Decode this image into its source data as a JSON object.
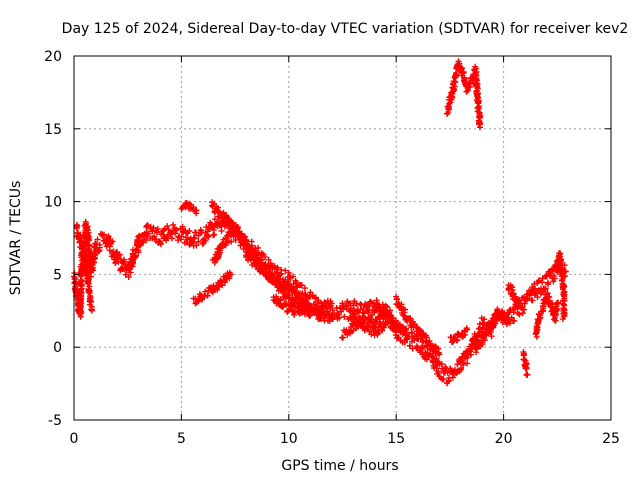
{
  "chart_data": {
    "type": "scatter",
    "title": "Day 125 of 2024, Sidereal Day-to-day VTEC variation (SDTVAR) for receiver kev2",
    "xlabel": "GPS time / hours",
    "ylabel": "SDTVAR / TECUs",
    "xlim": [
      0,
      25
    ],
    "ylim": [
      -5,
      20
    ],
    "x_ticks": [
      0,
      5,
      10,
      15,
      20,
      25
    ],
    "y_ticks": [
      -5,
      0,
      5,
      10,
      15,
      20
    ],
    "grid": true,
    "marker": "+",
    "color": "#ff0000",
    "series": [
      {
        "name": "SDTVAR",
        "trace": [
          [
            0.0,
            4.6
          ],
          [
            0.15,
            3.5
          ],
          [
            0.3,
            2.2
          ],
          [
            0.35,
            5.8
          ],
          [
            0.45,
            6.8
          ],
          [
            0.55,
            8.3
          ],
          [
            0.65,
            7.5
          ],
          [
            0.8,
            5.2
          ],
          [
            1.0,
            7.0
          ],
          [
            1.5,
            7.5
          ],
          [
            2.0,
            6.0
          ],
          [
            2.5,
            5.2
          ],
          [
            3.0,
            7.2
          ],
          [
            3.5,
            8.0
          ],
          [
            4.0,
            7.6
          ],
          [
            4.5,
            8.0
          ],
          [
            5.0,
            7.8
          ],
          [
            5.5,
            7.4
          ],
          [
            6.0,
            7.6
          ],
          [
            6.5,
            8.2
          ],
          [
            7.0,
            8.6
          ],
          [
            7.5,
            8.0
          ],
          [
            8.0,
            7.0
          ],
          [
            8.5,
            6.5
          ],
          [
            9.0,
            5.6
          ],
          [
            9.5,
            5.0
          ],
          [
            10.0,
            4.6
          ],
          [
            10.5,
            4.0
          ],
          [
            11.0,
            3.2
          ],
          [
            11.5,
            2.6
          ],
          [
            12.0,
            2.4
          ],
          [
            12.5,
            2.6
          ],
          [
            13.0,
            2.8
          ],
          [
            13.5,
            2.5
          ],
          [
            14.0,
            2.8
          ],
          [
            14.5,
            2.6
          ],
          [
            15.0,
            1.2
          ],
          [
            15.5,
            0.6
          ],
          [
            16.0,
            0.3
          ],
          [
            16.5,
            -0.4
          ],
          [
            17.0,
            -1.5
          ],
          [
            17.4,
            -2.0
          ],
          [
            17.8,
            -1.6
          ],
          [
            18.2,
            -0.8
          ],
          [
            18.6,
            0.2
          ],
          [
            19.0,
            1.5
          ],
          [
            19.4,
            1.2
          ],
          [
            19.8,
            2.6
          ],
          [
            20.2,
            2.0
          ],
          [
            20.6,
            2.5
          ],
          [
            21.0,
            3.0
          ],
          [
            21.4,
            3.8
          ],
          [
            21.8,
            4.2
          ],
          [
            22.2,
            4.8
          ],
          [
            22.6,
            5.6
          ],
          [
            22.9,
            5.2
          ]
        ],
        "segments": [
          [
            [
              0.1,
              8.3
            ],
            [
              0.3,
              7.2
            ],
            [
              0.5,
              6.2
            ],
            [
              0.7,
              4.0
            ],
            [
              0.8,
              2.6
            ]
          ],
          [
            [
              5.0,
              9.8
            ],
            [
              5.4,
              9.6
            ],
            [
              5.7,
              9.4
            ]
          ],
          [
            [
              5.6,
              3.2
            ],
            [
              6.0,
              3.6
            ],
            [
              6.5,
              4.0
            ],
            [
              7.0,
              4.6
            ],
            [
              7.3,
              5.0
            ]
          ],
          [
            [
              6.4,
              9.7
            ],
            [
              6.9,
              9.0
            ],
            [
              7.4,
              8.4
            ]
          ],
          [
            [
              6.5,
              6.0
            ],
            [
              7.0,
              7.2
            ],
            [
              7.5,
              7.8
            ]
          ],
          [
            [
              7.5,
              8.2
            ],
            [
              8.0,
              7.0
            ],
            [
              8.5,
              6.0
            ],
            [
              9.0,
              5.0
            ],
            [
              9.6,
              4.4
            ],
            [
              10.0,
              4.0
            ],
            [
              10.5,
              3.4
            ],
            [
              11.0,
              2.6
            ],
            [
              11.5,
              2.1
            ],
            [
              12.0,
              2.0
            ]
          ],
          [
            [
              8.0,
              6.2
            ],
            [
              8.6,
              5.6
            ],
            [
              9.2,
              4.8
            ],
            [
              9.8,
              3.6
            ],
            [
              10.4,
              3.0
            ],
            [
              11.0,
              2.2
            ]
          ],
          [
            [
              9.3,
              3.4
            ],
            [
              9.8,
              2.8
            ],
            [
              10.4,
              2.4
            ],
            [
              11.2,
              2.6
            ],
            [
              12.0,
              3.0
            ]
          ],
          [
            [
              12.5,
              0.8
            ],
            [
              13.0,
              1.4
            ],
            [
              13.5,
              2.0
            ],
            [
              14.0,
              1.6
            ],
            [
              14.5,
              2.2
            ]
          ],
          [
            [
              12.8,
              2.2
            ],
            [
              13.4,
              1.6
            ],
            [
              14.0,
              1.0
            ],
            [
              14.5,
              1.6
            ]
          ],
          [
            [
              14.0,
              3.0
            ],
            [
              14.5,
              2.2
            ],
            [
              15.0,
              1.5
            ],
            [
              15.5,
              1.0
            ]
          ],
          [
            [
              15.0,
              3.2
            ],
            [
              15.5,
              2.0
            ],
            [
              16.0,
              1.2
            ],
            [
              16.5,
              0.4
            ],
            [
              17.0,
              -0.5
            ]
          ],
          [
            [
              17.4,
              16.2
            ],
            [
              17.6,
              17.5
            ],
            [
              17.8,
              19.0
            ],
            [
              17.9,
              19.5
            ],
            [
              18.1,
              18.7
            ],
            [
              18.3,
              17.8
            ],
            [
              18.5,
              18.2
            ],
            [
              18.7,
              19.0
            ],
            [
              18.8,
              17.0
            ],
            [
              18.9,
              15.1
            ]
          ],
          [
            [
              17.5,
              0.5
            ],
            [
              18.0,
              0.9
            ],
            [
              18.3,
              1.2
            ]
          ],
          [
            [
              18.7,
              -0.2
            ],
            [
              19.0,
              0.5
            ],
            [
              19.4,
              1.5
            ],
            [
              19.8,
              2.2
            ],
            [
              20.2,
              1.8
            ]
          ],
          [
            [
              20.9,
              -0.5
            ],
            [
              21.0,
              -0.9
            ],
            [
              21.1,
              -1.9
            ]
          ],
          [
            [
              21.8,
              2.5
            ],
            [
              22.0,
              3.5
            ],
            [
              22.2,
              3.0
            ],
            [
              22.4,
              2.0
            ],
            [
              22.5,
              3.0
            ]
          ],
          [
            [
              22.6,
              6.5
            ],
            [
              22.7,
              5.0
            ],
            [
              22.8,
              4.0
            ],
            [
              22.8,
              2.1
            ]
          ],
          [
            [
              20.2,
              4.2
            ],
            [
              20.4,
              3.8
            ],
            [
              20.6,
              3.1
            ],
            [
              20.8,
              3.0
            ]
          ],
          [
            [
              21.5,
              0.8
            ],
            [
              21.6,
              1.5
            ],
            [
              21.7,
              2.2
            ]
          ]
        ]
      }
    ]
  }
}
